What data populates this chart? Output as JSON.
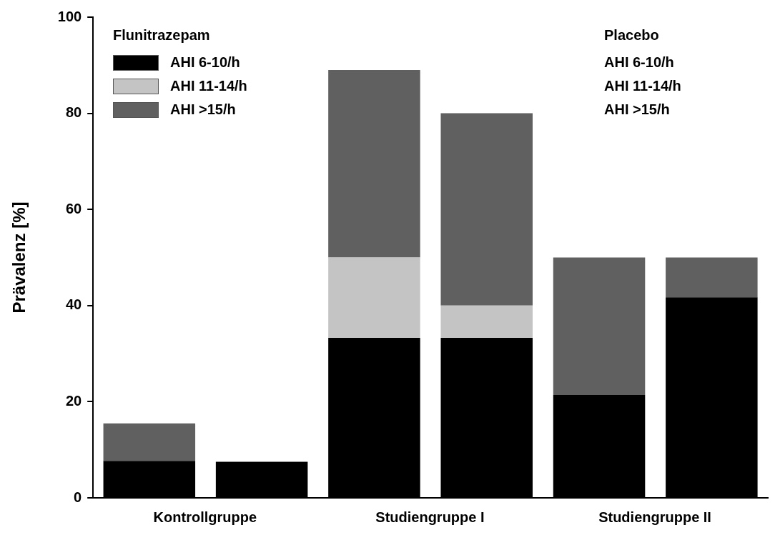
{
  "chart_data": {
    "type": "bar",
    "stacked": true,
    "ylabel": "Prävalenz [%]",
    "legend_title": "Flunitrazepam",
    "annotations": [
      "Placebo",
      "AHI 6-10/h",
      "AHI 11-14/h",
      "AHI >15/h"
    ],
    "categories": [
      "Kontrollgruppe",
      null,
      "Studiengruppe I",
      null,
      "Studiengruppe II",
      null
    ],
    "ylim": [
      0,
      100
    ],
    "yticks": [
      0,
      20,
      40,
      60,
      80,
      100
    ],
    "legend": "top left",
    "series": [
      {
        "name": "AHI 6-10/h",
        "color": "#000000",
        "values": [
          7.7,
          7.5,
          33.3,
          33.3,
          21.4,
          41.7
        ]
      },
      {
        "name": "AHI 11-14/h",
        "color": "#c4c4c4",
        "values": [
          null,
          null,
          16.7,
          6.7,
          null,
          null
        ]
      },
      {
        "name": "AHI >15/h",
        "color": "#606060",
        "values": [
          7.8,
          null,
          39,
          40,
          28.6,
          8.3
        ]
      }
    ]
  }
}
